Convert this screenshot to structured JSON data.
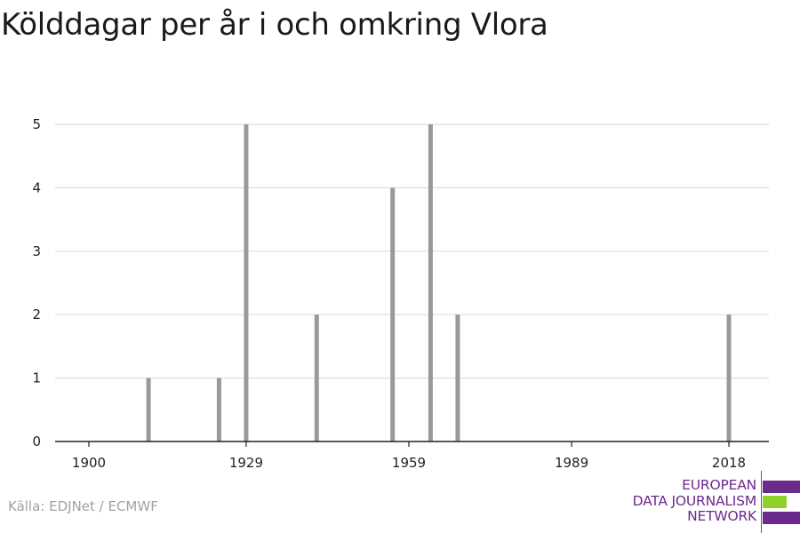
{
  "title": "Kölddagar per år i och omkring Vlora",
  "source": "Källa: EDJNet / ECMWF",
  "logo": {
    "lines": [
      "EUROPEAN",
      "DATA JOURNALISM",
      "NETWORK"
    ],
    "text_color": "#6b2a8c",
    "bar_colors": [
      "#6b2a8c",
      "#8fd12a",
      "#6b2a8c"
    ]
  },
  "chart_data": {
    "type": "bar",
    "title": "Kölddagar per år i och omkring Vlora",
    "xlabel": "",
    "ylabel": "",
    "xlim": [
      1900,
      2018
    ],
    "ylim": [
      0,
      5
    ],
    "x_ticks": [
      1900,
      1929,
      1959,
      1989,
      2018
    ],
    "y_ticks": [
      0,
      1,
      2,
      3,
      4,
      5
    ],
    "grid": true,
    "bar_color": "#999999",
    "x": [
      1911,
      1924,
      1929,
      1942,
      1956,
      1963,
      1968,
      2018
    ],
    "values": [
      1,
      1,
      5,
      2,
      4,
      5,
      2,
      2
    ]
  }
}
